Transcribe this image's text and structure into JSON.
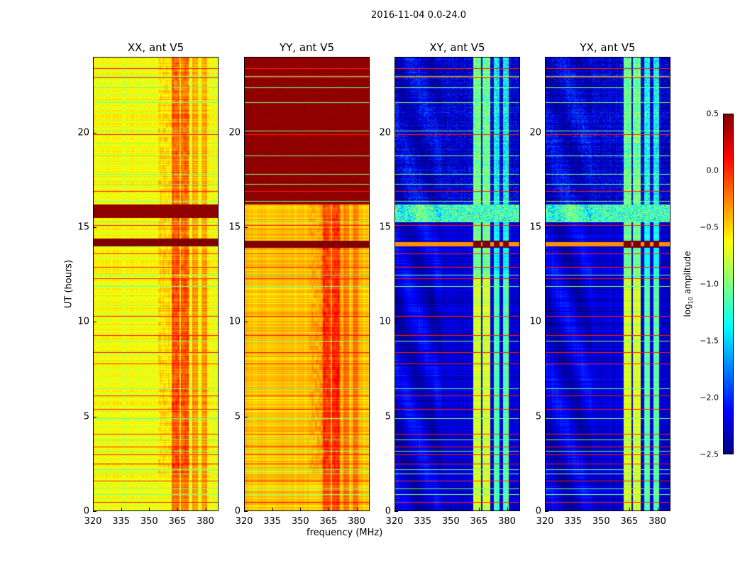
{
  "chart_data": {
    "type": "heatmap",
    "title": "2016-11-04 0.0-24.0",
    "xlabel": "frequency (MHz)",
    "ylabel": "UT (hours)",
    "xlim": [
      320,
      387
    ],
    "ylim": [
      0,
      24
    ],
    "xticks": [
      320,
      335,
      350,
      365,
      380
    ],
    "yticks": [
      0,
      5,
      10,
      15,
      20
    ],
    "colorbar": {
      "label": "log10 amplitude",
      "label_main": "log",
      "label_sub": "10",
      "label_rest": " amplitude",
      "range": [
        -2.5,
        0.5
      ],
      "ticks": [
        "0.5",
        "0.0",
        "−0.5",
        "−1.0",
        "−1.5",
        "−2.0",
        "−2.5"
      ],
      "tick_values": [
        0.5,
        0.0,
        -0.5,
        -1.0,
        -1.5,
        -2.0,
        -2.5
      ],
      "colormap": "jet"
    },
    "panels": [
      {
        "title": "XX, ant V5",
        "baseline": -0.65,
        "band_boost": 0.45,
        "saturated_hours": [
          14.0,
          14.4
        ],
        "saturated_blocks": [
          [
            15.5,
            16.2
          ]
        ]
      },
      {
        "title": "YY, ant V5",
        "baseline": -0.45,
        "band_boost": 0.35,
        "saturated_hours": [
          13.9,
          14.3
        ],
        "saturated_blocks": [
          [
            16.2,
            24.0
          ]
        ]
      },
      {
        "title": "XY, ant V5",
        "baseline": -2.25,
        "band_boost": 1.5,
        "saturated_hours": [
          13.9,
          14.3
        ],
        "saturated_blocks": []
      },
      {
        "title": "YX, ant V5",
        "baseline": -2.25,
        "band_boost": 1.5,
        "saturated_hours": [
          13.9,
          14.3
        ],
        "saturated_blocks": []
      }
    ],
    "rfi_bright_channels_mhz": [
      [
        362,
        366
      ],
      [
        367,
        371
      ],
      [
        373,
        376
      ],
      [
        378,
        381
      ]
    ],
    "flagged_rows_high": [
      0.5,
      1.6,
      2.5,
      3.0,
      3.4,
      4.1,
      5.4,
      6.1,
      7.8,
      8.4,
      9.3,
      10.3,
      12.3,
      12.9,
      13.6,
      15.1,
      16.9,
      19.9,
      22.9,
      23.4
    ],
    "flagged_rows_mid": [
      0.9,
      1.2,
      2.0,
      2.2,
      3.2,
      3.8,
      4.9,
      6.5,
      9.0,
      11.9,
      12.5,
      15.3,
      16.4,
      17.3,
      17.8,
      18.8,
      20.1,
      21.6,
      22.4,
      23.0
    ]
  }
}
